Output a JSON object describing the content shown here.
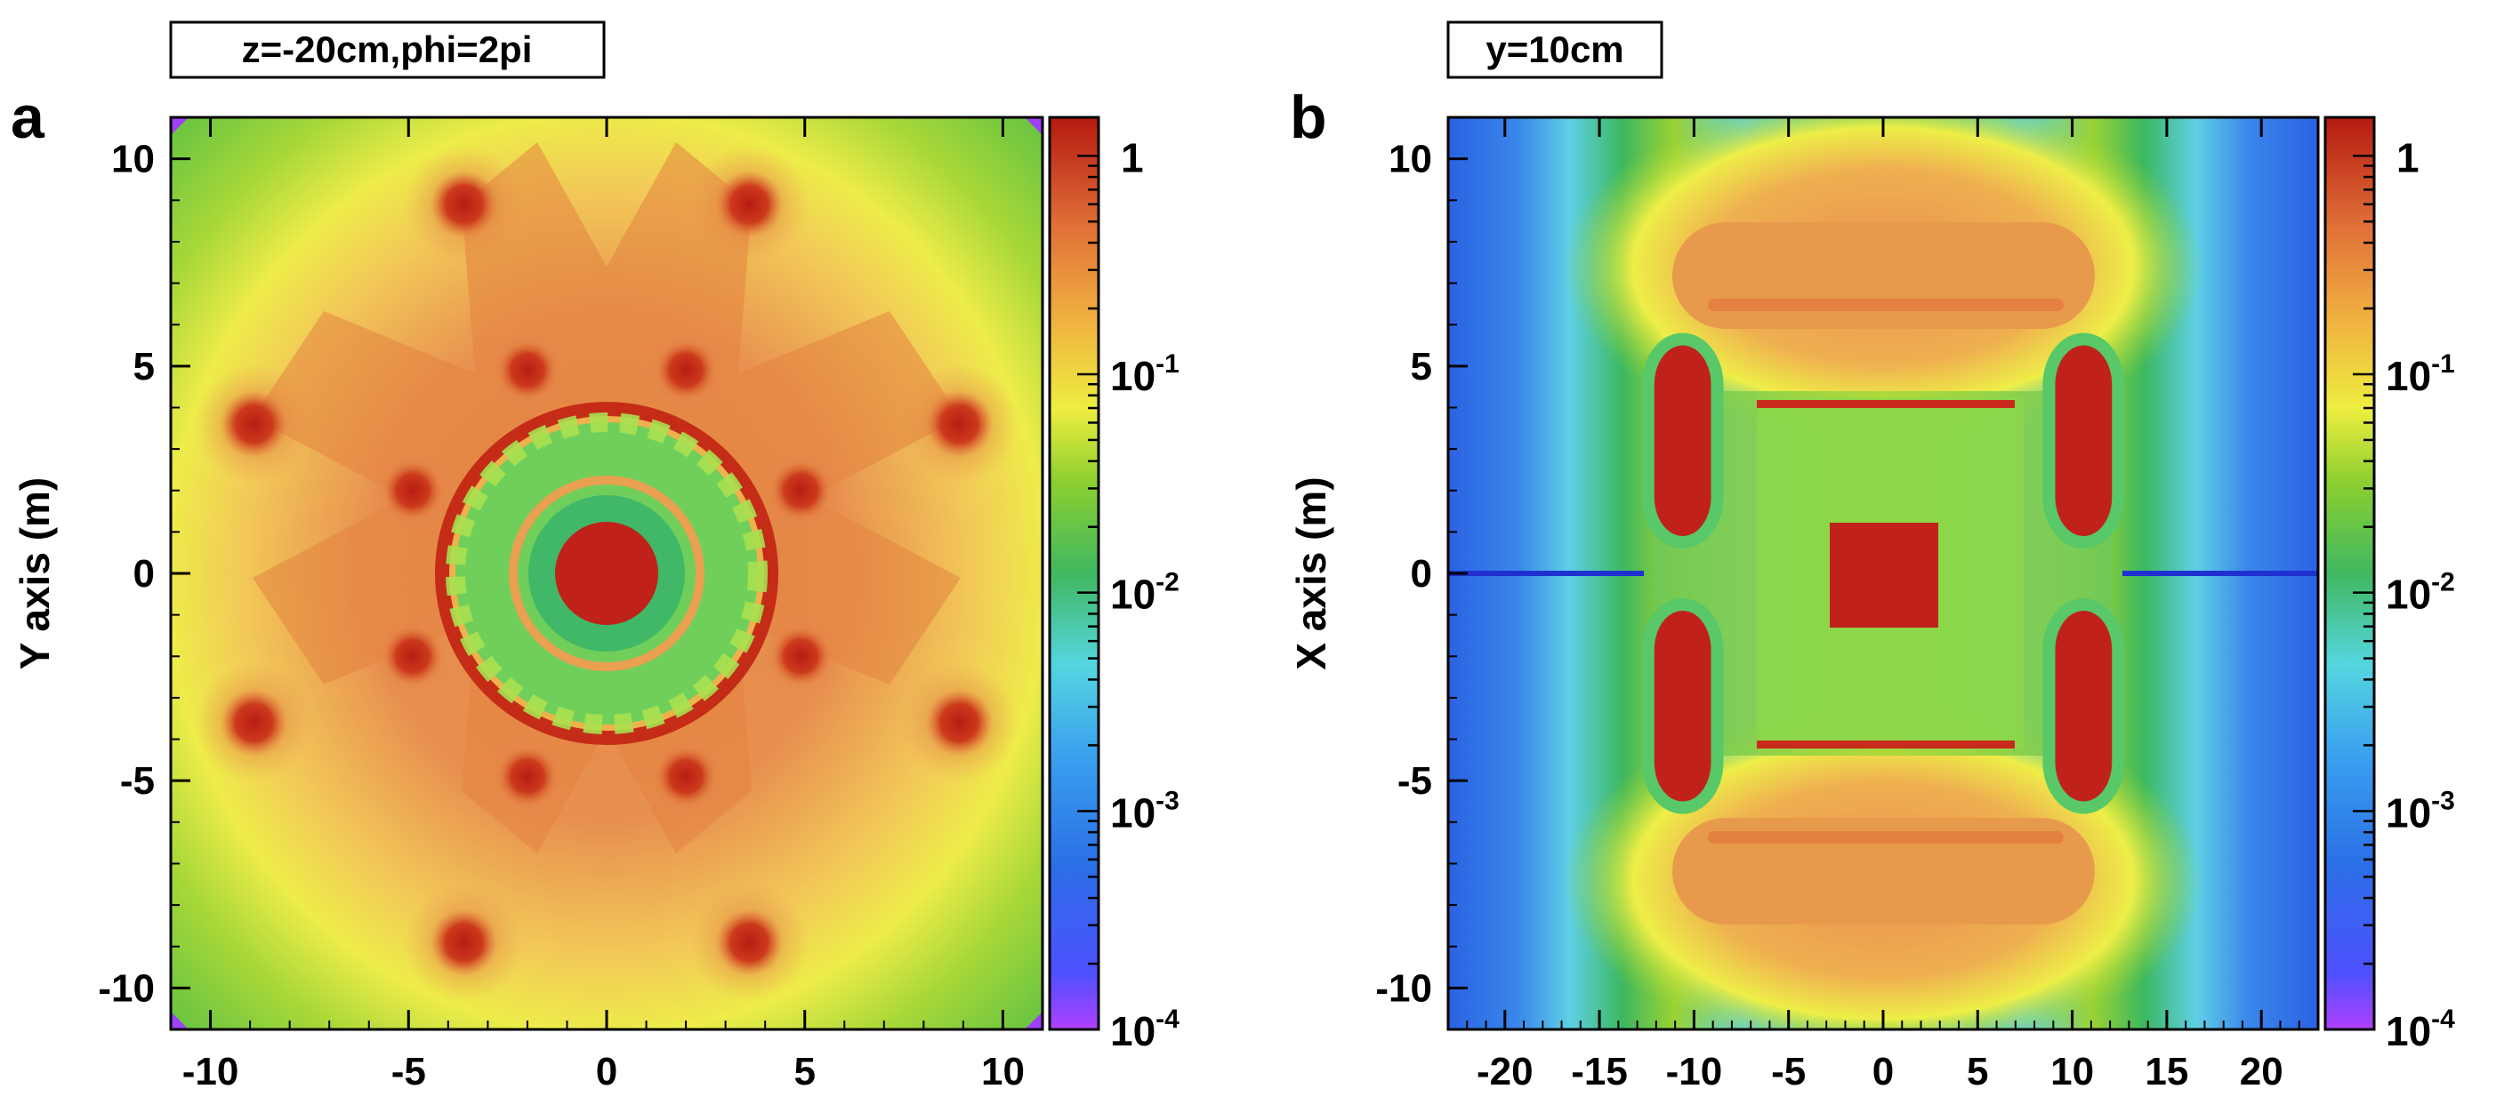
{
  "chart_data": [
    {
      "type": "heatmap",
      "panel_letter": "a",
      "title": "z=-20cm,phi=2pi",
      "ylabel": "Y axis (m)",
      "xlabel": "",
      "xlim": [
        -11,
        11
      ],
      "ylim": [
        -11,
        11
      ],
      "x_ticks": [
        -10,
        -5,
        0,
        5,
        10
      ],
      "y_ticks": [
        -10,
        -5,
        0,
        5,
        10
      ],
      "colorbar": {
        "scale": "log",
        "range": [
          0.0001,
          1.5
        ],
        "tick_base": "10",
        "tick_exponents": [
          "-4",
          "-3",
          "-2",
          "-1"
        ],
        "top_label": "1"
      },
      "features": {
        "outer_ring_radius_m": 4,
        "inner_ring_radius_m": 2,
        "core_radius_m": 1.2,
        "coil_spots_outer": [
          [
            -3.6,
            8.9
          ],
          [
            3.6,
            8.9
          ],
          [
            8.9,
            3.6
          ],
          [
            8.9,
            -3.6
          ],
          [
            3.6,
            -8.9
          ],
          [
            -3.6,
            -8.9
          ],
          [
            -8.9,
            -3.6
          ],
          [
            -8.9,
            3.6
          ]
        ],
        "coil_spots_inner": [
          [
            -2,
            4.9
          ],
          [
            2,
            4.9
          ],
          [
            4.9,
            2
          ],
          [
            4.9,
            -2
          ],
          [
            2,
            -4.9
          ],
          [
            -2,
            -4.9
          ],
          [
            -4.9,
            -2
          ],
          [
            -4.9,
            2
          ]
        ]
      },
      "grid": false
    },
    {
      "type": "heatmap",
      "panel_letter": "b",
      "title": "y=10cm",
      "ylabel": "X axis (m)",
      "xlabel": "",
      "xlim": [
        -23,
        23
      ],
      "ylim": [
        -11,
        11
      ],
      "x_ticks": [
        -20,
        -15,
        -10,
        -5,
        0,
        5,
        10,
        15,
        20
      ],
      "y_ticks": [
        -10,
        -5,
        0,
        5,
        10
      ],
      "colorbar": {
        "scale": "log",
        "range": [
          0.0001,
          1.5
        ],
        "tick_base": "10",
        "tick_exponents": [
          "-4",
          "-3",
          "-2",
          "-1"
        ],
        "top_label": "1"
      },
      "features": {
        "coil_blocks_centers": [
          [
            -10.6,
            3.2
          ],
          [
            10.6,
            3.2
          ],
          [
            -10.6,
            -3.2
          ],
          [
            10.6,
            -3.2
          ]
        ],
        "core_block_center": [
          0,
          0
        ],
        "horizontal_plates_x": 4.1
      },
      "grid": false
    }
  ],
  "colors": {
    "scale": [
      "#8a30ff",
      "#2040e0",
      "#2a7be6",
      "#45a8ee",
      "#5ee0e0",
      "#40c060",
      "#8ed030",
      "#f0ee40",
      "#f0a840",
      "#e07040",
      "#c82a1c",
      "#b01810"
    ]
  }
}
